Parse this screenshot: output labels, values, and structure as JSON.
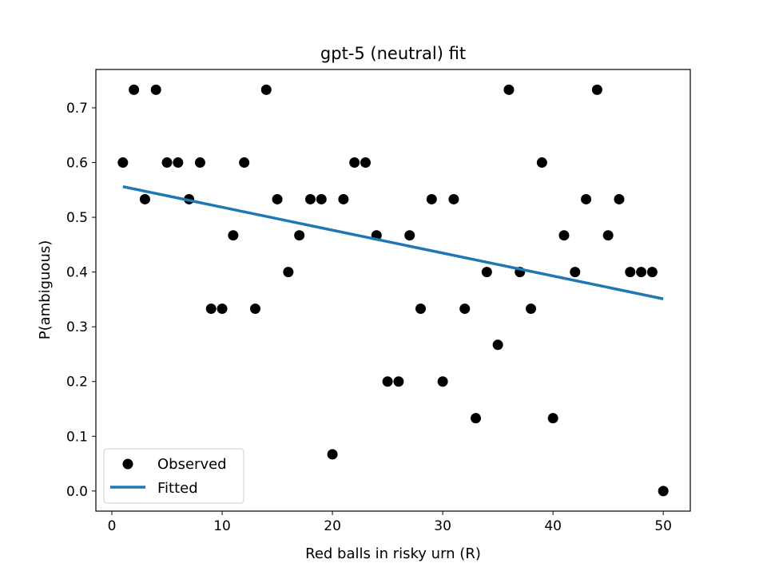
{
  "chart_data": {
    "type": "scatter",
    "title": "gpt-5 (neutral) fit",
    "xlabel": "Red balls in risky urn (R)",
    "ylabel": "P(ambiguous)",
    "xlim": [
      -1.45,
      52.45
    ],
    "ylim": [
      -0.0367,
      0.77
    ],
    "xticks": [
      0,
      10,
      20,
      30,
      40,
      50
    ],
    "yticks": [
      0.0,
      0.1,
      0.2,
      0.3,
      0.4,
      0.5,
      0.6,
      0.7
    ],
    "ytick_labels": [
      "0.0",
      "0.1",
      "0.2",
      "0.3",
      "0.4",
      "0.5",
      "0.6",
      "0.7"
    ],
    "grid": false,
    "legend_position": "lower-left",
    "series": [
      {
        "name": "Observed",
        "kind": "scatter",
        "color": "#000000",
        "points": [
          [
            1,
            0.6
          ],
          [
            2,
            0.733
          ],
          [
            3,
            0.533
          ],
          [
            4,
            0.733
          ],
          [
            5,
            0.6
          ],
          [
            6,
            0.6
          ],
          [
            7,
            0.533
          ],
          [
            8,
            0.6
          ],
          [
            9,
            0.333
          ],
          [
            10,
            0.333
          ],
          [
            11,
            0.467
          ],
          [
            12,
            0.6
          ],
          [
            13,
            0.333
          ],
          [
            14,
            0.733
          ],
          [
            15,
            0.533
          ],
          [
            16,
            0.4
          ],
          [
            17,
            0.467
          ],
          [
            18,
            0.533
          ],
          [
            19,
            0.533
          ],
          [
            20,
            0.067
          ],
          [
            21,
            0.533
          ],
          [
            22,
            0.6
          ],
          [
            23,
            0.6
          ],
          [
            24,
            0.467
          ],
          [
            25,
            0.2
          ],
          [
            26,
            0.2
          ],
          [
            27,
            0.467
          ],
          [
            28,
            0.333
          ],
          [
            29,
            0.533
          ],
          [
            30,
            0.2
          ],
          [
            31,
            0.533
          ],
          [
            32,
            0.333
          ],
          [
            33,
            0.133
          ],
          [
            34,
            0.4
          ],
          [
            35,
            0.267
          ],
          [
            36,
            0.733
          ],
          [
            37,
            0.4
          ],
          [
            38,
            0.333
          ],
          [
            39,
            0.6
          ],
          [
            40,
            0.133
          ],
          [
            41,
            0.467
          ],
          [
            42,
            0.4
          ],
          [
            43,
            0.533
          ],
          [
            44,
            0.733
          ],
          [
            45,
            0.467
          ],
          [
            46,
            0.533
          ],
          [
            47,
            0.4
          ],
          [
            48,
            0.4
          ],
          [
            49,
            0.4
          ],
          [
            50,
            0.0
          ]
        ]
      },
      {
        "name": "Fitted",
        "kind": "line",
        "color": "#1f77b4",
        "points": [
          [
            1,
            0.556
          ],
          [
            50,
            0.351
          ]
        ]
      }
    ]
  }
}
